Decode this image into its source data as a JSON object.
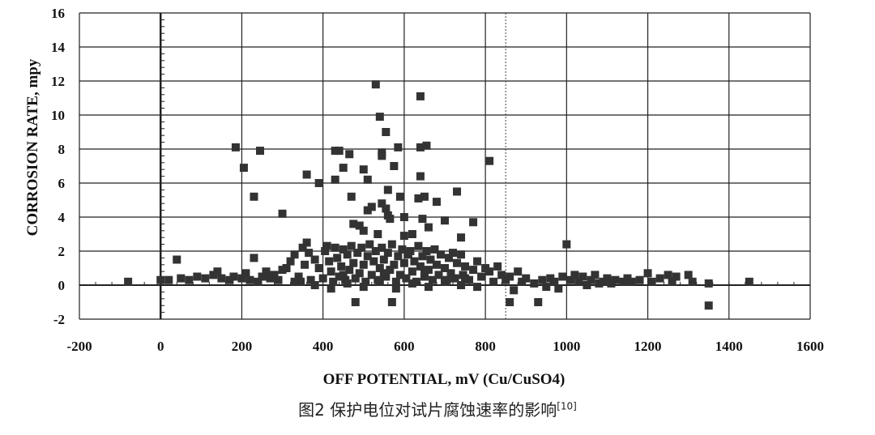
{
  "chart_data": {
    "type": "scatter",
    "xlabel": "OFF POTENTIAL, mV (Cu/CuSO4)",
    "ylabel": "CORROSION RATE, mpy",
    "xlim": [
      -200,
      1600
    ],
    "ylim": [
      -2,
      16
    ],
    "xticks": [
      -200,
      0,
      200,
      400,
      600,
      800,
      1000,
      1200,
      1400,
      1600
    ],
    "yticks": [
      -2,
      0,
      2,
      4,
      6,
      8,
      10,
      12,
      14,
      16
    ],
    "grid": true,
    "reference_line_x": 850,
    "marker": "square",
    "marker_color": "#333333",
    "points": [
      [
        -80,
        0.2
      ],
      [
        0,
        0.3
      ],
      [
        40,
        1.5
      ],
      [
        185,
        8.1
      ],
      [
        205,
        6.9
      ],
      [
        230,
        5.2
      ],
      [
        245,
        7.9
      ],
      [
        230,
        1.6
      ],
      [
        300,
        4.2
      ],
      [
        360,
        6.5
      ],
      [
        390,
        6.0
      ],
      [
        430,
        7.9
      ],
      [
        440,
        7.9
      ],
      [
        450,
        6.9
      ],
      [
        430,
        6.2
      ],
      [
        465,
        7.7
      ],
      [
        470,
        5.2
      ],
      [
        500,
        6.8
      ],
      [
        510,
        6.2
      ],
      [
        530,
        11.8
      ],
      [
        540,
        9.9
      ],
      [
        545,
        7.8
      ],
      [
        555,
        9.0
      ],
      [
        575,
        7.0
      ],
      [
        585,
        8.1
      ],
      [
        590,
        5.2
      ],
      [
        560,
        5.6
      ],
      [
        545,
        7.6
      ],
      [
        640,
        11.1
      ],
      [
        640,
        8.1
      ],
      [
        655,
        8.2
      ],
      [
        640,
        6.4
      ],
      [
        650,
        5.2
      ],
      [
        635,
        5.1
      ],
      [
        680,
        4.9
      ],
      [
        730,
        5.5
      ],
      [
        810,
        7.3
      ],
      [
        1000,
        2.4
      ],
      [
        1350,
        -1.2
      ],
      [
        1450,
        0.2
      ],
      [
        480,
        -1.0
      ],
      [
        570,
        -1.0
      ],
      [
        860,
        -1.0
      ],
      [
        930,
        -1.0
      ],
      [
        510,
        4.4
      ],
      [
        520,
        4.6
      ],
      [
        560,
        4.1
      ],
      [
        475,
        3.6
      ],
      [
        490,
        3.5
      ],
      [
        500,
        3.2
      ],
      [
        535,
        3.0
      ],
      [
        545,
        4.8
      ],
      [
        555,
        4.5
      ],
      [
        565,
        3.9
      ],
      [
        600,
        4.0
      ],
      [
        645,
        3.9
      ],
      [
        660,
        3.4
      ],
      [
        700,
        3.8
      ],
      [
        770,
        3.7
      ],
      [
        740,
        2.8
      ],
      [
        620,
        3.0
      ],
      [
        600,
        2.9
      ],
      [
        360,
        2.5
      ],
      [
        350,
        2.2
      ],
      [
        20,
        0.3
      ],
      [
        50,
        0.4
      ],
      [
        70,
        0.3
      ],
      [
        90,
        0.5
      ],
      [
        110,
        0.4
      ],
      [
        130,
        0.6
      ],
      [
        140,
        0.8
      ],
      [
        150,
        0.4
      ],
      [
        170,
        0.3
      ],
      [
        180,
        0.5
      ],
      [
        200,
        0.4
      ],
      [
        210,
        0.7
      ],
      [
        220,
        0.3
      ],
      [
        240,
        0.2
      ],
      [
        250,
        0.5
      ],
      [
        260,
        0.8
      ],
      [
        270,
        0.4
      ],
      [
        280,
        0.6
      ],
      [
        290,
        0.3
      ],
      [
        300,
        0.9
      ],
      [
        310,
        1.0
      ],
      [
        320,
        1.4
      ],
      [
        330,
        1.8
      ],
      [
        340,
        0.5
      ],
      [
        345,
        0.2
      ],
      [
        355,
        1.2
      ],
      [
        365,
        1.9
      ],
      [
        370,
        0.3
      ],
      [
        380,
        1.5
      ],
      [
        390,
        1.0
      ],
      [
        400,
        0.4
      ],
      [
        405,
        2.0
      ],
      [
        410,
        2.3
      ],
      [
        415,
        1.4
      ],
      [
        420,
        0.8
      ],
      [
        425,
        0.2
      ],
      [
        430,
        2.2
      ],
      [
        435,
        1.6
      ],
      [
        440,
        0.5
      ],
      [
        445,
        1.1
      ],
      [
        450,
        2.1
      ],
      [
        455,
        0.3
      ],
      [
        460,
        1.8
      ],
      [
        465,
        0.9
      ],
      [
        470,
        2.3
      ],
      [
        475,
        1.3
      ],
      [
        480,
        0.4
      ],
      [
        485,
        1.9
      ],
      [
        490,
        0.7
      ],
      [
        495,
        2.2
      ],
      [
        500,
        1.2
      ],
      [
        505,
        0.2
      ],
      [
        510,
        1.7
      ],
      [
        515,
        2.4
      ],
      [
        520,
        0.6
      ],
      [
        525,
        1.4
      ],
      [
        530,
        2.0
      ],
      [
        535,
        0.3
      ],
      [
        540,
        1.0
      ],
      [
        545,
        2.2
      ],
      [
        550,
        1.5
      ],
      [
        555,
        0.5
      ],
      [
        560,
        1.9
      ],
      [
        565,
        0.9
      ],
      [
        570,
        2.4
      ],
      [
        575,
        1.2
      ],
      [
        580,
        0.2
      ],
      [
        585,
        1.7
      ],
      [
        590,
        0.6
      ],
      [
        595,
        2.1
      ],
      [
        600,
        1.3
      ],
      [
        605,
        0.4
      ],
      [
        610,
        1.8
      ],
      [
        615,
        2.0
      ],
      [
        620,
        0.8
      ],
      [
        625,
        1.4
      ],
      [
        630,
        0.2
      ],
      [
        635,
        2.3
      ],
      [
        640,
        1.1
      ],
      [
        645,
        1.7
      ],
      [
        650,
        0.5
      ],
      [
        655,
        2.0
      ],
      [
        660,
        0.9
      ],
      [
        665,
        1.5
      ],
      [
        670,
        0.3
      ],
      [
        675,
        2.1
      ],
      [
        680,
        1.2
      ],
      [
        685,
        0.6
      ],
      [
        690,
        1.8
      ],
      [
        700,
        1.0
      ],
      [
        705,
        0.3
      ],
      [
        710,
        1.6
      ],
      [
        715,
        0.7
      ],
      [
        720,
        1.9
      ],
      [
        725,
        0.4
      ],
      [
        730,
        1.3
      ],
      [
        740,
        1.8
      ],
      [
        745,
        0.6
      ],
      [
        750,
        1.1
      ],
      [
        760,
        0.3
      ],
      [
        770,
        0.9
      ],
      [
        780,
        1.4
      ],
      [
        790,
        0.5
      ],
      [
        800,
        1.0
      ],
      [
        810,
        0.8
      ],
      [
        820,
        0.2
      ],
      [
        830,
        1.1
      ],
      [
        840,
        0.6
      ],
      [
        850,
        0.3
      ],
      [
        860,
        0.5
      ],
      [
        870,
        -0.3
      ],
      [
        880,
        0.8
      ],
      [
        890,
        0.2
      ],
      [
        900,
        0.4
      ],
      [
        920,
        0.1
      ],
      [
        940,
        0.3
      ],
      [
        950,
        -0.1
      ],
      [
        960,
        0.4
      ],
      [
        970,
        0.2
      ],
      [
        980,
        -0.2
      ],
      [
        990,
        0.5
      ],
      [
        1010,
        0.3
      ],
      [
        1020,
        0.6
      ],
      [
        1030,
        0.2
      ],
      [
        1040,
        0.5
      ],
      [
        1050,
        0.0
      ],
      [
        1060,
        0.3
      ],
      [
        1070,
        0.6
      ],
      [
        1080,
        0.1
      ],
      [
        1090,
        0.2
      ],
      [
        1100,
        0.4
      ],
      [
        1110,
        0.1
      ],
      [
        1120,
        0.3
      ],
      [
        1140,
        0.2
      ],
      [
        1150,
        0.4
      ],
      [
        1160,
        0.2
      ],
      [
        1180,
        0.3
      ],
      [
        1200,
        0.7
      ],
      [
        1210,
        0.2
      ],
      [
        1230,
        0.4
      ],
      [
        1250,
        0.6
      ],
      [
        1260,
        0.2
      ],
      [
        1270,
        0.5
      ],
      [
        1300,
        0.6
      ],
      [
        1310,
        0.2
      ],
      [
        1350,
        0.1
      ],
      [
        330,
        0.2
      ],
      [
        380,
        0.0
      ],
      [
        420,
        -0.2
      ],
      [
        460,
        0.1
      ],
      [
        500,
        -0.1
      ],
      [
        540,
        0.2
      ],
      [
        580,
        -0.2
      ],
      [
        620,
        0.1
      ],
      [
        660,
        -0.1
      ],
      [
        700,
        0.2
      ],
      [
        740,
        0.0
      ],
      [
        780,
        -0.1
      ],
      [
        450,
        0.6
      ],
      [
        550,
        0.7
      ],
      [
        650,
        0.8
      ],
      [
        750,
        0.4
      ]
    ]
  },
  "caption": {
    "text": "图2  保护电位对试片腐蚀速率的影响",
    "ref": "[10]"
  }
}
